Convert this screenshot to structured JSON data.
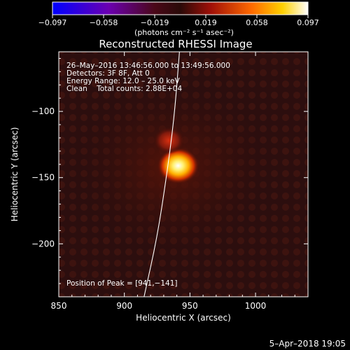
{
  "colorbar": {
    "ticks": [
      "−0.097",
      "−0.058",
      "−0.019",
      "0.019",
      "0.058",
      "0.097"
    ],
    "min": -0.097,
    "max": 0.097,
    "unit_label": "(photons cm⁻² s⁻¹ asec⁻²)"
  },
  "chart_data": {
    "type": "heatmap",
    "title": "Reconstructed RHESSI Image",
    "xlabel": "Heliocentric X (arcsec)",
    "ylabel": "Heliocentric Y (arcsec)",
    "xlim": [
      850,
      1040
    ],
    "ylim": [
      -240,
      -55
    ],
    "x_ticks": [
      850,
      900,
      950,
      1000
    ],
    "y_ticks": [
      -100,
      -150,
      -200
    ],
    "x_tick_labels": [
      "850",
      "900",
      "950",
      "1000"
    ],
    "y_tick_labels": [
      "−100",
      "−150",
      "−200"
    ],
    "colormap": "hot",
    "annotations": [
      "26–May–2016 13:46:56.000 to 13:49:56.000",
      "Detectors: 3F 8F, Att 0",
      "Energy Range: 12.0 – 25.0 keV",
      "Clean    Total counts: 2.88E+04"
    ],
    "peak_label": "Position of Peak = [941,−141]",
    "sources": [
      {
        "x": 941,
        "y": -141,
        "relative_intensity": 1.0
      },
      {
        "x": 934,
        "y": -122,
        "relative_intensity": 0.45
      }
    ],
    "limb_curve": [
      [
        915,
        -240
      ],
      [
        925,
        -195
      ],
      [
        932,
        -150
      ],
      [
        938,
        -105
      ],
      [
        942,
        -55
      ]
    ]
  },
  "footer": {
    "timestamp": "5–Apr–2018 19:05"
  }
}
